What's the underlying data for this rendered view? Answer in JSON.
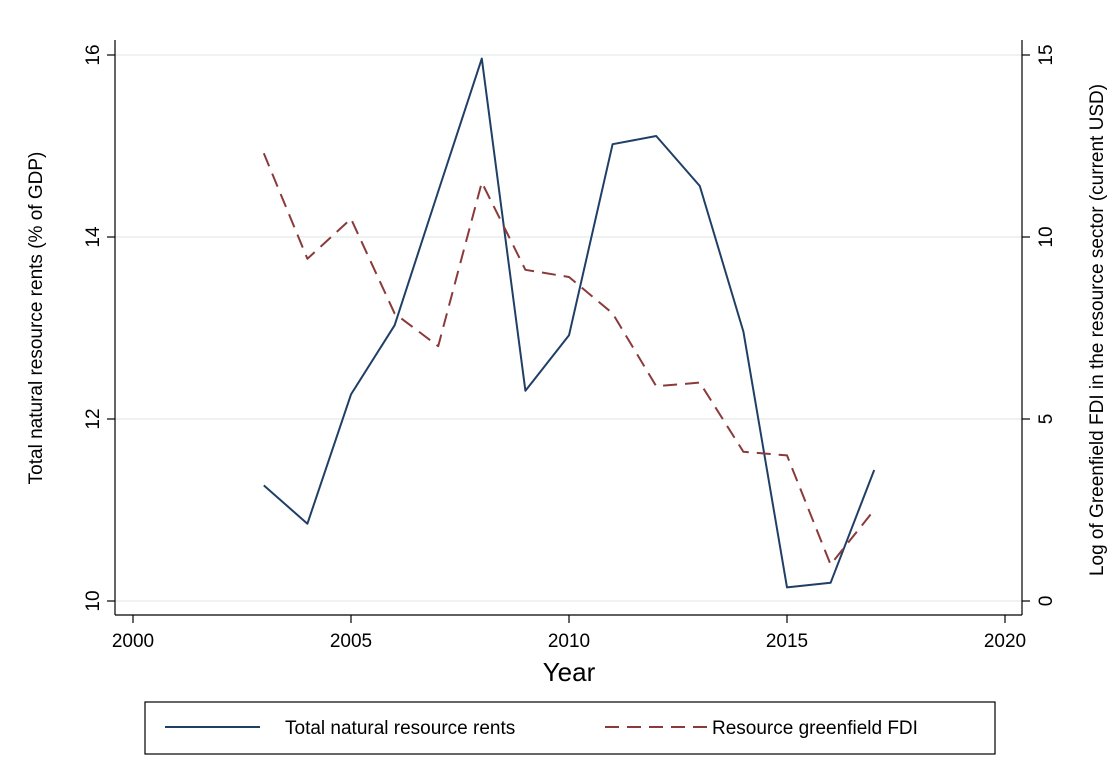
{
  "chart_data": {
    "type": "line",
    "xlabel": "Year",
    "ylabel": "Total natural resource rents (% of GDP)",
    "y2label": "Log of Greenfield FDI in the resource sector (current USD)",
    "xlim": [
      2000,
      2020
    ],
    "ylim": [
      10,
      16
    ],
    "y2lim": [
      0,
      15
    ],
    "xticks": [
      "2000",
      "2005",
      "2010",
      "2015",
      "2020"
    ],
    "yticks": [
      "10",
      "12",
      "14",
      "16"
    ],
    "y2ticks": [
      "0",
      "5",
      "10",
      "15"
    ],
    "grid": true,
    "legend_position": "bottom",
    "series": [
      {
        "name": "Total natural resource rents",
        "axis": "left",
        "style": "solid",
        "color": "#1f3f66",
        "x": [
          2003,
          2004,
          2005,
          2006,
          2007,
          2008,
          2009,
          2010,
          2011,
          2012,
          2013,
          2014,
          2015,
          2016,
          2017
        ],
        "values": [
          11.27,
          10.85,
          12.27,
          13.03,
          14.5,
          15.96,
          12.31,
          12.92,
          15.02,
          15.11,
          14.56,
          12.96,
          10.15,
          10.2,
          11.44
        ]
      },
      {
        "name": "Resource greenfield FDI",
        "axis": "right",
        "style": "dashed",
        "color": "#8b3a3a",
        "x": [
          2003,
          2004,
          2005,
          2006,
          2007,
          2008,
          2009,
          2010,
          2011,
          2012,
          2013,
          2014,
          2015,
          2016,
          2017
        ],
        "values": [
          12.3,
          9.4,
          10.5,
          7.9,
          7.0,
          11.5,
          9.1,
          8.9,
          7.9,
          5.9,
          6.0,
          4.1,
          4.0,
          1.0,
          2.5
        ]
      }
    ]
  }
}
